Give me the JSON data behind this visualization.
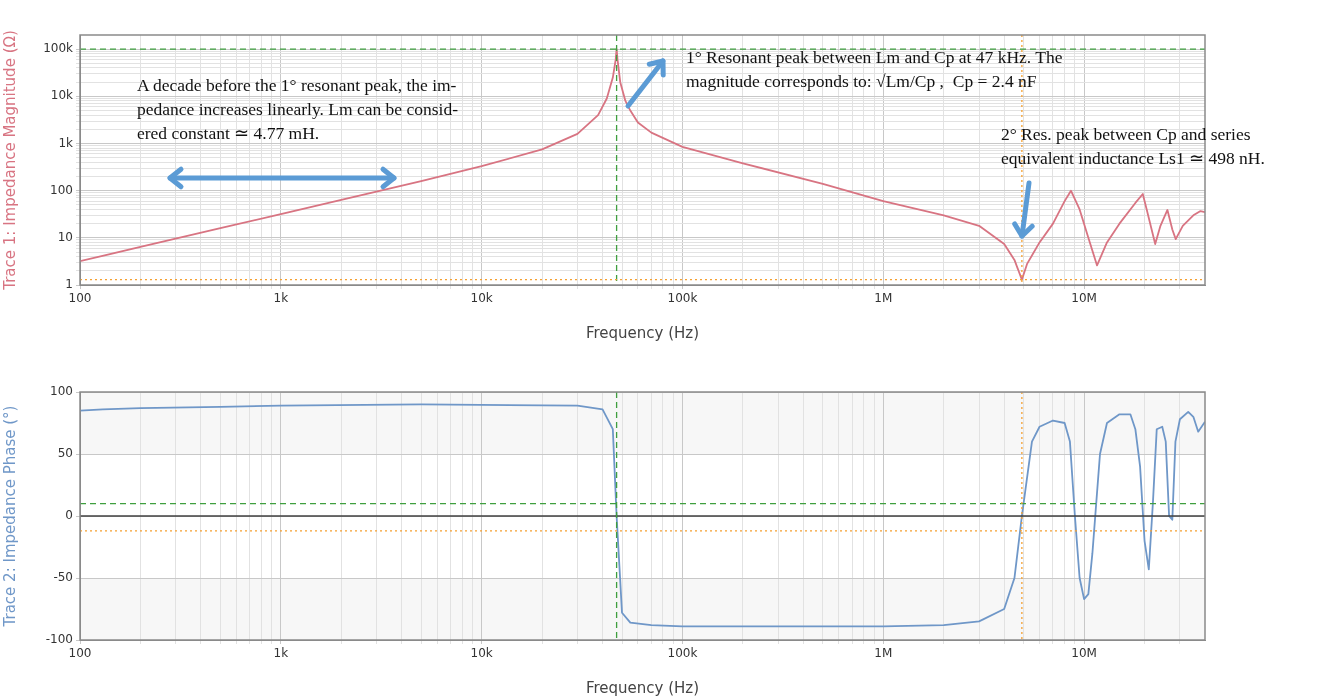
{
  "chart_data": [
    {
      "type": "line",
      "xlabel": "Frequency (Hz)",
      "ylabel": "Trace 1: Impedance Magnitude (Ω)",
      "log": "xy",
      "grid": true,
      "marker": "none",
      "line_style": "solid",
      "xlim": [
        100,
        40000000
      ],
      "ylim": [
        1,
        200000
      ],
      "xticks": [
        100,
        {
          "value": 200,
          "label": null
        },
        {
          "value": 300,
          "label": null
        },
        {
          "value": 400,
          "label": null
        },
        {
          "value": 500,
          "label": null
        },
        {
          "value": 600,
          "label": null
        },
        {
          "value": 700,
          "label": null
        },
        {
          "value": 800,
          "label": null
        },
        {
          "value": 900,
          "label": null
        },
        {
          "value": 1000,
          "label": "1k"
        },
        {
          "value": 2000,
          "label": null
        },
        {
          "value": 3000,
          "label": null
        },
        {
          "value": 4000,
          "label": null
        },
        {
          "value": 5000,
          "label": null
        },
        {
          "value": 6000,
          "label": null
        },
        {
          "value": 7000,
          "label": null
        },
        {
          "value": 8000,
          "label": null
        },
        {
          "value": 9000,
          "label": null
        },
        {
          "value": 10000,
          "label": "10k"
        },
        {
          "value": 20000,
          "label": null
        },
        {
          "value": 30000,
          "label": null
        },
        {
          "value": 40000,
          "label": null
        },
        {
          "value": 50000,
          "label": null
        },
        {
          "value": 60000,
          "label": null
        },
        {
          "value": 70000,
          "label": null
        },
        {
          "value": 80000,
          "label": null
        },
        {
          "value": 90000,
          "label": null
        },
        {
          "value": 100000,
          "label": "100k"
        },
        {
          "value": 200000,
          "label": null
        },
        {
          "value": 300000,
          "label": null
        },
        {
          "value": 400000,
          "label": null
        },
        {
          "value": 500000,
          "label": null
        },
        {
          "value": 600000,
          "label": null
        },
        {
          "value": 700000,
          "label": null
        },
        {
          "value": 800000,
          "label": null
        },
        {
          "value": 900000,
          "label": null
        },
        {
          "value": 1000000,
          "label": "1M"
        },
        {
          "value": 2000000,
          "label": null
        },
        {
          "value": 3000000,
          "label": null
        },
        {
          "value": 4000000,
          "label": null
        },
        {
          "value": 5000000,
          "label": null
        },
        {
          "value": 6000000,
          "label": null
        },
        {
          "value": 7000000,
          "label": null
        },
        {
          "value": 8000000,
          "label": null
        },
        {
          "value": 9000000,
          "label": null
        },
        {
          "value": 10000000,
          "label": "10M"
        },
        {
          "value": 20000000,
          "label": null
        },
        {
          "value": 30000000,
          "label": null
        }
      ],
      "yticks": [
        1,
        {
          "value": 2,
          "label": null
        },
        {
          "value": 3,
          "label": null
        },
        {
          "value": 4,
          "label": null
        },
        {
          "value": 5,
          "label": null
        },
        {
          "value": 6,
          "label": null
        },
        {
          "value": 7,
          "label": null
        },
        {
          "value": 8,
          "label": null
        },
        {
          "value": 9,
          "label": null
        },
        10,
        {
          "value": 20,
          "label": null
        },
        {
          "value": 30,
          "label": null
        },
        {
          "value": 40,
          "label": null
        },
        {
          "value": 50,
          "label": null
        },
        {
          "value": 60,
          "label": null
        },
        {
          "value": 70,
          "label": null
        },
        {
          "value": 80,
          "label": null
        },
        {
          "value": 90,
          "label": null
        },
        100,
        {
          "value": 200,
          "label": null
        },
        {
          "value": 300,
          "label": null
        },
        {
          "value": 400,
          "label": null
        },
        {
          "value": 500,
          "label": null
        },
        {
          "value": 600,
          "label": null
        },
        {
          "value": 700,
          "label": null
        },
        {
          "value": 800,
          "label": null
        },
        {
          "value": 900,
          "label": null
        },
        {
          "value": 1000,
          "label": "1k"
        },
        {
          "value": 2000,
          "label": null
        },
        {
          "value": 3000,
          "label": null
        },
        {
          "value": 4000,
          "label": null
        },
        {
          "value": 5000,
          "label": null
        },
        {
          "value": 6000,
          "label": null
        },
        {
          "value": 7000,
          "label": null
        },
        {
          "value": 8000,
          "label": null
        },
        {
          "value": 9000,
          "label": null
        },
        {
          "value": 10000,
          "label": "10k"
        },
        {
          "value": 20000,
          "label": null
        },
        {
          "value": 30000,
          "label": null
        },
        {
          "value": 40000,
          "label": null
        },
        {
          "value": 50000,
          "label": null
        },
        {
          "value": 60000,
          "label": null
        },
        {
          "value": 70000,
          "label": null
        },
        {
          "value": 80000,
          "label": null
        },
        {
          "value": 90000,
          "label": null
        },
        {
          "value": 100000,
          "label": "100k"
        }
      ],
      "series": [
        {
          "color": "#d87482",
          "x": [
            100,
            200,
            500,
            1000,
            2000,
            5000,
            10000,
            20000,
            30000,
            38000,
            42000,
            45000,
            46500,
            47000,
            47500,
            49000,
            52000,
            55000,
            60000,
            70000,
            100000,
            200000,
            500000,
            1000000,
            2000000,
            3000000,
            4000000,
            4500000,
            4900000,
            5200000,
            6000000,
            7000000,
            8000000,
            8600000,
            9500000,
            10500000,
            11600000,
            13000000,
            15000000,
            18000000,
            19600000,
            20500000,
            22600000,
            24000000,
            26000000,
            27500000,
            28600000,
            31000000,
            35000000,
            38000000,
            40000000
          ],
          "values": [
            3.2,
            6.4,
            16,
            32,
            64,
            160,
            330,
            750,
            1600,
            4000,
            9000,
            25000,
            60000,
            100000,
            60000,
            20000,
            8000,
            5000,
            2800,
            1700,
            850,
            380,
            140,
            60,
            30,
            18,
            7.4,
            3.4,
            1.3,
            2.8,
            8,
            20,
            60,
            100,
            40,
            10,
            2.6,
            8,
            20,
            55,
            85,
            40,
            7.4,
            18,
            39,
            15,
            9.4,
            18,
            30,
            37,
            35
          ]
        }
      ],
      "ref_lines": [
        {
          "axis": "x",
          "value": 47000,
          "color": "#3f9f3f",
          "line_style": "dashed"
        },
        {
          "axis": "y",
          "value": 100000,
          "color": "#3f9f3f",
          "line_style": "dashed"
        },
        {
          "axis": "x",
          "value": 4900000,
          "color": "#f5a030",
          "line_style": "dotted"
        },
        {
          "axis": "y",
          "value": 1.3,
          "color": "#f5a030",
          "line_style": "dotted"
        }
      ],
      "annotations": [
        "A decade before the 1° resonant peak, the im-\npedance increases linearly. Lm can be consid-\nered constant ≃ 4.77 mH.",
        "1° Resonant peak between Lm and Cp at 47 kHz. The\nmagnitude corresponds to: √Lm/Cp ,  Cp = 2.4 nF",
        {
          "text": "2° Res. peak between Cp and series\nequivalent inductance Ls1 ≃ 498 nH.",
          "x": 4900000,
          "y": 10
        }
      ]
    },
    {
      "type": "line",
      "xlabel": "Frequency (Hz)",
      "ylabel": "Trace 2: Impedance Phase (°)",
      "log": "x",
      "grid": true,
      "marker": "none",
      "line_style": "solid",
      "xlim": [
        100,
        40000000
      ],
      "ylim": [
        -100,
        100
      ],
      "xticks": [
        100,
        {
          "value": 200,
          "label": null
        },
        {
          "value": 300,
          "label": null
        },
        {
          "value": 400,
          "label": null
        },
        {
          "value": 500,
          "label": null
        },
        {
          "value": 600,
          "label": null
        },
        {
          "value": 700,
          "label": null
        },
        {
          "value": 800,
          "label": null
        },
        {
          "value": 900,
          "label": null
        },
        {
          "value": 1000,
          "label": "1k"
        },
        {
          "value": 2000,
          "label": null
        },
        {
          "value": 3000,
          "label": null
        },
        {
          "value": 4000,
          "label": null
        },
        {
          "value": 5000,
          "label": null
        },
        {
          "value": 6000,
          "label": null
        },
        {
          "value": 7000,
          "label": null
        },
        {
          "value": 8000,
          "label": null
        },
        {
          "value": 9000,
          "label": null
        },
        {
          "value": 10000,
          "label": "10k"
        },
        {
          "value": 20000,
          "label": null
        },
        {
          "value": 30000,
          "label": null
        },
        {
          "value": 40000,
          "label": null
        },
        {
          "value": 50000,
          "label": null
        },
        {
          "value": 60000,
          "label": null
        },
        {
          "value": 70000,
          "label": null
        },
        {
          "value": 80000,
          "label": null
        },
        {
          "value": 90000,
          "label": null
        },
        {
          "value": 100000,
          "label": "100k"
        },
        {
          "value": 200000,
          "label": null
        },
        {
          "value": 300000,
          "label": null
        },
        {
          "value": 400000,
          "label": null
        },
        {
          "value": 500000,
          "label": null
        },
        {
          "value": 600000,
          "label": null
        },
        {
          "value": 700000,
          "label": null
        },
        {
          "value": 800000,
          "label": null
        },
        {
          "value": 900000,
          "label": null
        },
        {
          "value": 1000000,
          "label": "1M"
        },
        {
          "value": 2000000,
          "label": null
        },
        {
          "value": 3000000,
          "label": null
        },
        {
          "value": 4000000,
          "label": null
        },
        {
          "value": 5000000,
          "label": null
        },
        {
          "value": 6000000,
          "label": null
        },
        {
          "value": 7000000,
          "label": null
        },
        {
          "value": 8000000,
          "label": null
        },
        {
          "value": 9000000,
          "label": null
        },
        {
          "value": 10000000,
          "label": "10M"
        },
        {
          "value": 20000000,
          "label": null
        },
        {
          "value": 30000000,
          "label": null
        }
      ],
      "yticks": [
        -100,
        -50,
        0,
        50,
        100
      ],
      "series": [
        {
          "color": "#6f97c8",
          "x": [
            100,
            130,
            200,
            500,
            1000,
            5000,
            30000,
            40000,
            45000,
            47000,
            50000,
            55000,
            70000,
            100000,
            1000000,
            2000000,
            3000000,
            4000000,
            4500000,
            4900000,
            5500000,
            6000000,
            7000000,
            8000000,
            8500000,
            9000000,
            9500000,
            10000000,
            10500000,
            11000000,
            12000000,
            13000000,
            15000000,
            17000000,
            18000000,
            19000000,
            20000000,
            21000000,
            22000000,
            23000000,
            24500000,
            25500000,
            26500000,
            27500000,
            28500000,
            30000000,
            33000000,
            35000000,
            37000000,
            40000000
          ],
          "values": [
            85,
            86,
            87,
            88,
            89,
            90,
            89,
            86,
            70,
            0,
            -78,
            -86,
            -88,
            -89,
            -89,
            -88,
            -85,
            -75,
            -50,
            0,
            60,
            72,
            77,
            75,
            60,
            0,
            -50,
            -67,
            -63,
            -30,
            50,
            75,
            82,
            82,
            70,
            40,
            -20,
            -43,
            10,
            70,
            72,
            60,
            0,
            -3,
            60,
            78,
            84,
            80,
            68,
            76
          ]
        }
      ],
      "ref_lines": [
        {
          "axis": "y",
          "value": 0,
          "color": "#404040",
          "line_style": "solid"
        },
        {
          "axis": "x",
          "value": 47000,
          "color": "#3f9f3f",
          "line_style": "dashed"
        },
        {
          "axis": "y",
          "value": 10,
          "color": "#3f9f3f",
          "line_style": "dashed"
        },
        {
          "axis": "x",
          "value": 4900000,
          "color": "#f5a030",
          "line_style": "dotted"
        },
        {
          "axis": "y",
          "value": -12,
          "color": "#f5a030",
          "line_style": "dotted"
        }
      ],
      "bands": [
        {
          "axis": "y",
          "from": 50,
          "to": 100,
          "color": "#f7f7f7"
        },
        {
          "axis": "y",
          "from": -100,
          "to": -50,
          "color": "#f7f7f7"
        }
      ]
    }
  ]
}
